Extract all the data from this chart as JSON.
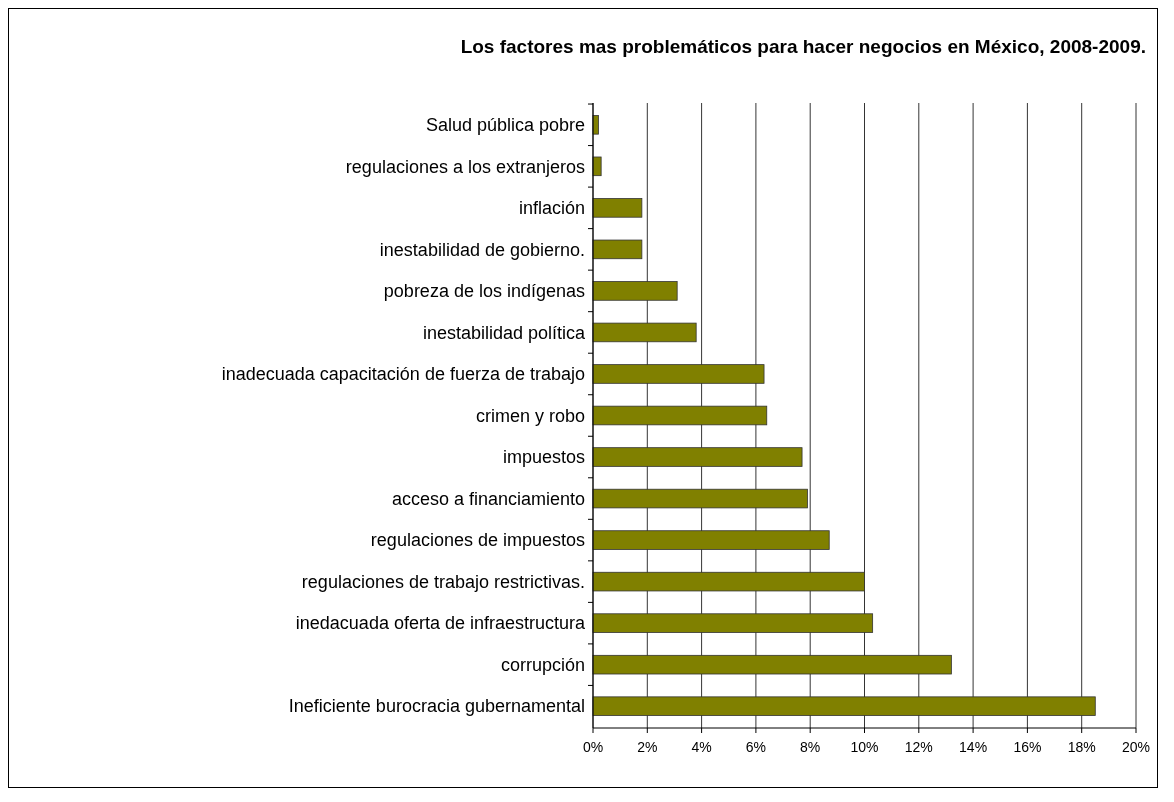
{
  "chart_data": {
    "type": "bar",
    "orientation": "horizontal",
    "title": "Los factores mas problemáticos para hacer negocios en México, 2008-2009.",
    "categories": [
      "Salud pública pobre",
      "regulaciones a los extranjeros",
      "inflación",
      "inestabilidad de gobierno.",
      "pobreza de los indígenas",
      "inestabilidad política",
      "inadecuada capacitación de fuerza de trabajo",
      "crimen y robo",
      "impuestos",
      "acceso a financiamiento",
      "regulaciones de impuestos",
      "regulaciones de trabajo restrictivas.",
      "inedacuada oferta de infraestructura",
      "corrupción",
      "Ineficiente burocracia gubernamental"
    ],
    "values": [
      0.2,
      0.3,
      1.8,
      1.8,
      3.1,
      3.8,
      6.3,
      6.4,
      7.7,
      7.9,
      8.7,
      10.0,
      10.3,
      13.2,
      18.5
    ],
    "color": "#808000",
    "xlim": [
      0,
      20
    ],
    "xticks": [
      {
        "value": 0,
        "label": "0%"
      },
      {
        "value": 2,
        "label": "2%"
      },
      {
        "value": 4,
        "label": "4%"
      },
      {
        "value": 6,
        "label": "6%"
      },
      {
        "value": 8,
        "label": "8%"
      },
      {
        "value": 10,
        "label": "10%"
      },
      {
        "value": 12,
        "label": "12%"
      },
      {
        "value": 14,
        "label": "14%"
      },
      {
        "value": 16,
        "label": "16%"
      },
      {
        "value": 18,
        "label": "18%"
      },
      {
        "value": 20,
        "label": "20%"
      }
    ],
    "grid": "x"
  }
}
